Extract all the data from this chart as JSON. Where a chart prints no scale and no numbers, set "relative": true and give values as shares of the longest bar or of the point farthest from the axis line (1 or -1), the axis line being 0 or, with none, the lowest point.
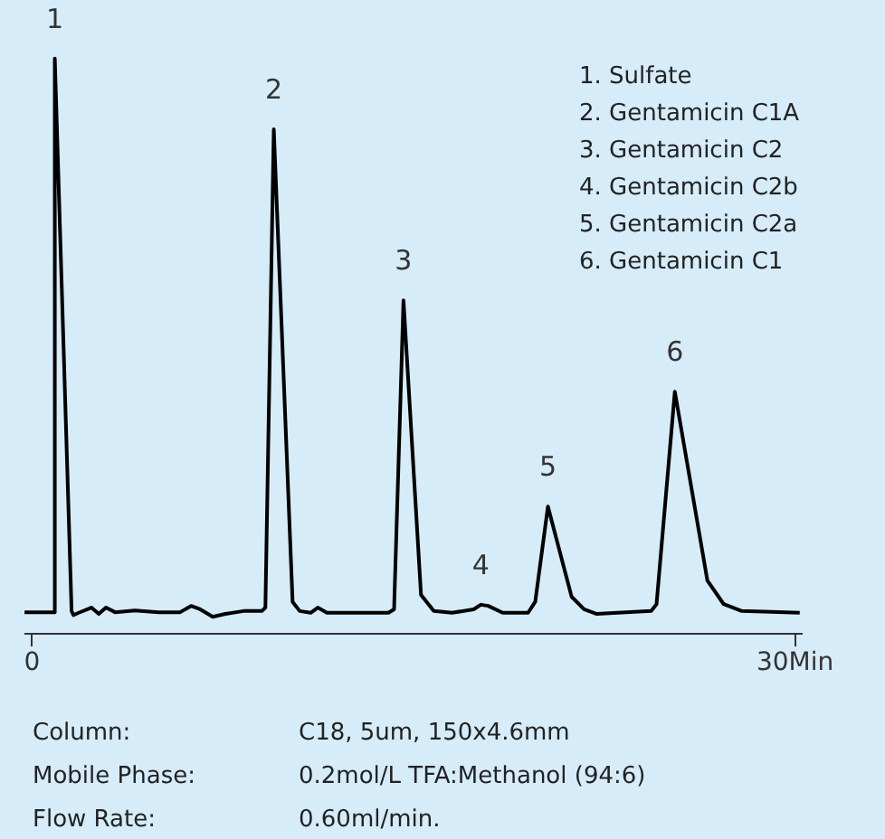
{
  "chart_data": {
    "type": "line",
    "relative": true,
    "grid": false,
    "tick_labels": "x",
    "xlim": [
      -0.3,
      30.3
    ],
    "xticks": [
      0,
      {
        "value": 30,
        "label": "30Min"
      }
    ],
    "x": [
      -0.26,
      0.93,
      0.93,
      1.59,
      1.66,
      1.87,
      2.37,
      2.66,
      2.94,
      3.3,
      4.08,
      5.01,
      5.86,
      6.29,
      6.65,
      7.14,
      7.64,
      8.35,
      9.07,
      9.21,
      9.54,
      10.28,
      10.56,
      10.99,
      11.27,
      11.63,
      12.98,
      14.05,
      14.27,
      14.64,
      15.33,
      15.83,
      16.55,
      17.4,
      17.68,
      17.97,
      18.54,
      19.54,
      19.82,
      20.32,
      21.25,
      21.74,
      22.24,
      24.38,
      24.59,
      25.31,
      26.59,
      27.23,
      27.94,
      30.22
    ],
    "series": [
      {
        "color": "#000000",
        "values": [
          0.036,
          0.036,
          1,
          0.038,
          0.031,
          0.035,
          0.044,
          0.033,
          0.044,
          0.036,
          0.039,
          0.036,
          0.036,
          0.047,
          0.041,
          0.028,
          0.033,
          0.038,
          0.038,
          0.044,
          0.877,
          0.054,
          0.038,
          0.035,
          0.044,
          0.035,
          0.035,
          0.035,
          0.041,
          0.579,
          0.066,
          0.038,
          0.035,
          0.041,
          0.049,
          0.047,
          0.035,
          0.035,
          0.054,
          0.22,
          0.063,
          0.041,
          0.033,
          0.038,
          0.05,
          0.42,
          0.091,
          0.05,
          0.038,
          0.035
        ]
      }
    ],
    "annotations": [
      {
        "text": "1",
        "x": 0.93,
        "y": 1
      },
      {
        "text": "2",
        "x": 9.54,
        "y": 0.877
      },
      {
        "text": "3",
        "x": 14.64,
        "y": 0.579
      },
      {
        "text": "4",
        "x": 17.68,
        "y": 0.049
      },
      {
        "text": "5",
        "x": 20.32,
        "y": 0.22
      },
      {
        "text": "6",
        "x": 25.31,
        "y": 0.42
      },
      "1. Sulfate",
      "2. Gentamicin C1A",
      "3. Gentamicin C2",
      "4. Gentamicin C2b",
      "5. Gentamicin C2a",
      "6. Gentamicin C1",
      "Column:",
      "C18, 5um, 150x4.6mm",
      "Mobile Phase:",
      "0.2mol/L TFA:Methanol  (94:6)",
      "Flow Rate:",
      "0.60ml/min."
    ]
  }
}
